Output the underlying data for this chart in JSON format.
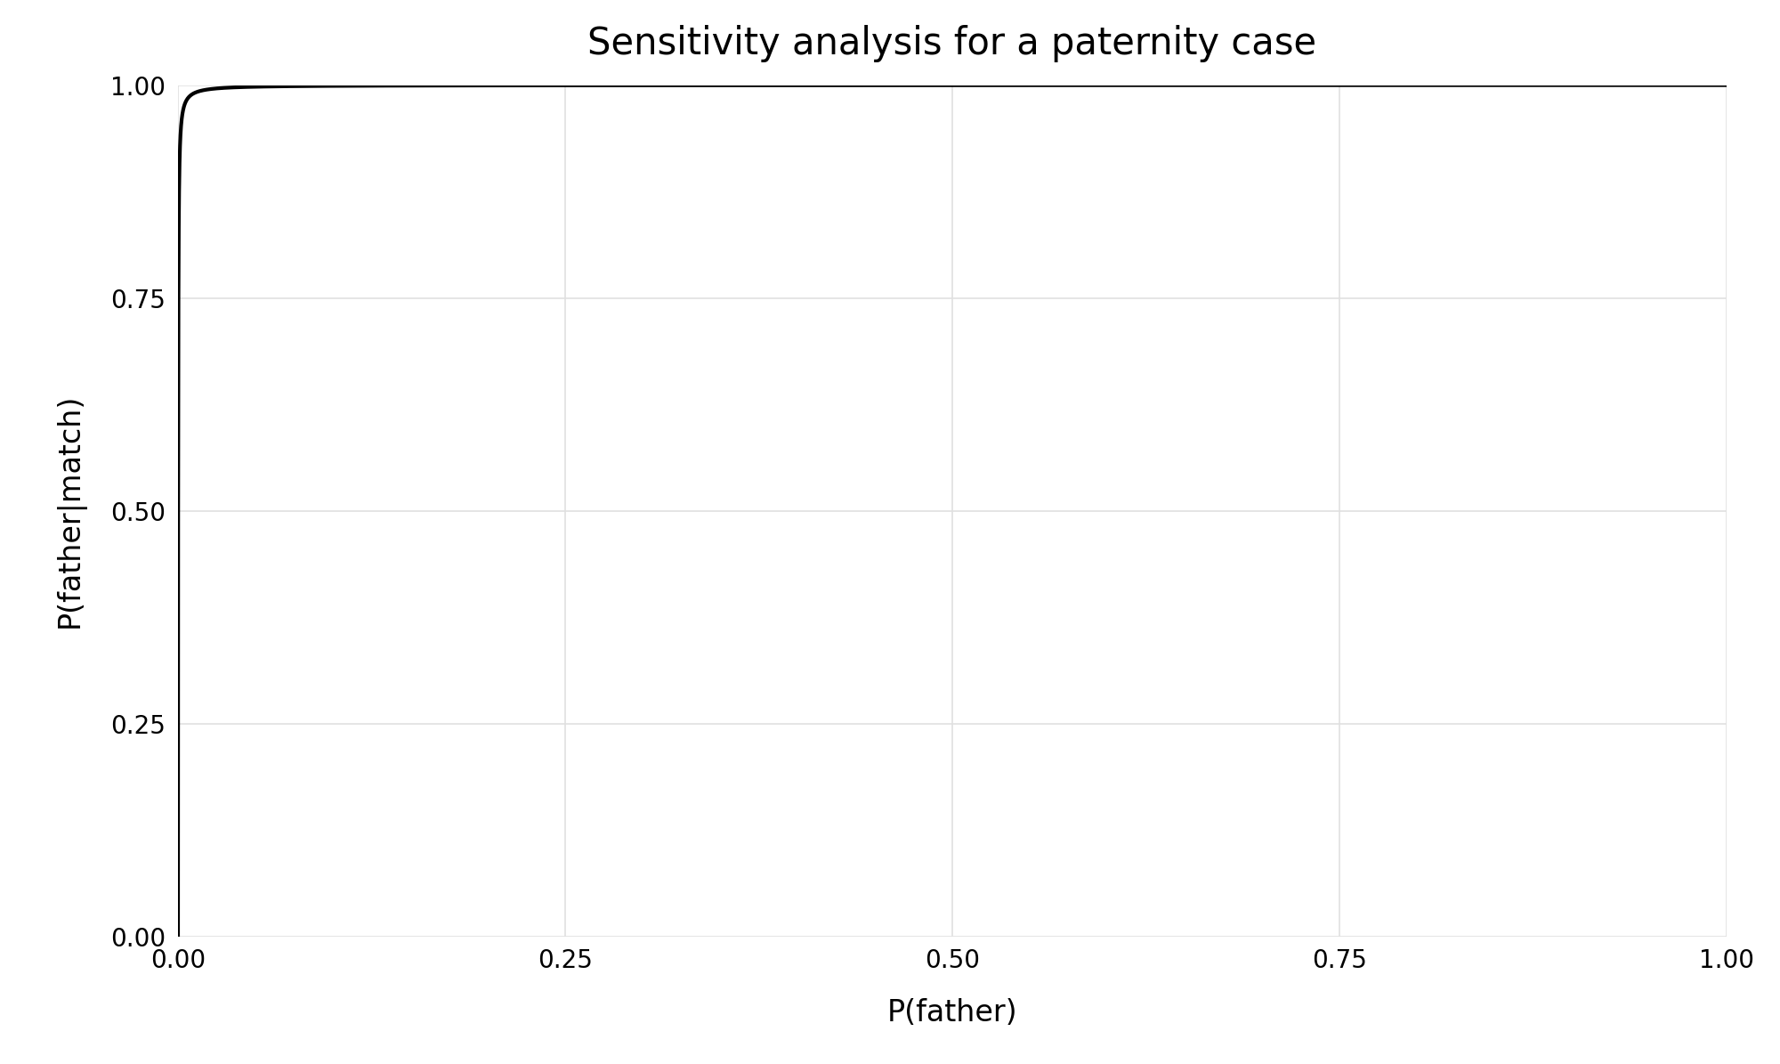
{
  "title": "Sensitivity analysis for a paternity case",
  "xlabel": "P(father)",
  "ylabel": "P(father|match)",
  "xlim": [
    0,
    1
  ],
  "ylim": [
    0,
    1
  ],
  "xticks": [
    0.0,
    0.25,
    0.5,
    0.75,
    1.0
  ],
  "yticks": [
    0.0,
    0.25,
    0.5,
    0.75,
    1.0
  ],
  "likelihood_ratio": 10000,
  "line_color": "#000000",
  "line_width": 3.0,
  "background_color": "#ffffff",
  "plot_bg_color": "#ffffff",
  "grid_color": "#e0e0e0",
  "title_fontsize": 30,
  "label_fontsize": 24,
  "tick_fontsize": 20
}
